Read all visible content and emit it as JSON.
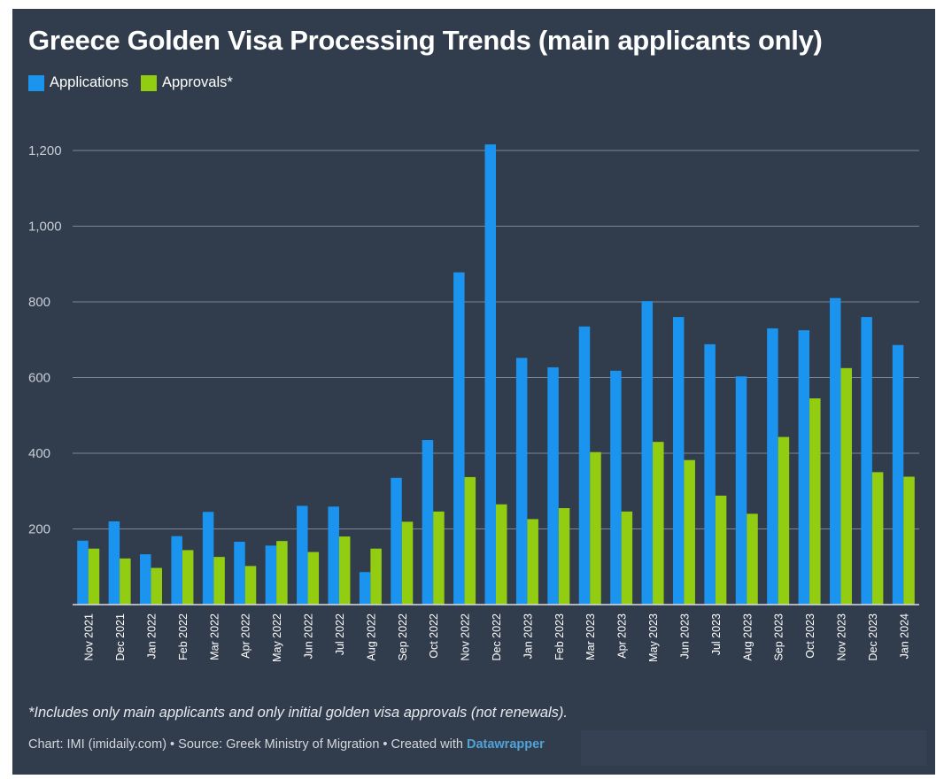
{
  "title": "Greece Golden Visa Processing Trends (main applicants only)",
  "legend": [
    {
      "label": "Applications",
      "color": "#1a94ef"
    },
    {
      "label": "Approvals*",
      "color": "#93cd12"
    }
  ],
  "note": "*Includes only main applicants and only initial golden visa approvals (not renewals).",
  "footer": {
    "prefix": "Chart: IMI (imidaily.com) • Source: Greek Ministry of Migration • Created with ",
    "link": "Datawrapper"
  },
  "chart_data": {
    "type": "bar",
    "title": "Greece Golden Visa Processing Trends (main applicants only)",
    "xlabel": "",
    "ylabel": "",
    "ylim": [
      0,
      1200
    ],
    "yticks": [
      200,
      400,
      600,
      800,
      1000,
      1200
    ],
    "ytick_labels": [
      "200",
      "400",
      "600",
      "800",
      "1,000",
      "1,200"
    ],
    "grid": true,
    "legend_position": "top-left",
    "categories": [
      "Nov 2021",
      "Dec 2021",
      "Jan 2022",
      "Feb 2022",
      "Mar 2022",
      "Apr 2022",
      "May 2022",
      "Jun 2022",
      "Jul 2022",
      "Aug 2022",
      "Sep 2022",
      "Oct 2022",
      "Nov 2022",
      "Dec 2022",
      "Jan 2023",
      "Feb 2023",
      "Mar 2023",
      "Apr 2023",
      "May 2023",
      "Jun 2023",
      "Jul 2023",
      "Aug 2023",
      "Sep 2023",
      "Oct 2023",
      "Nov 2023",
      "Dec 2023",
      "Jan 2024"
    ],
    "series": [
      {
        "name": "Applications",
        "color": "#1a94ef",
        "values": [
          169,
          220,
          133,
          181,
          245,
          166,
          156,
          261,
          259,
          86,
          335,
          435,
          878,
          1216,
          652,
          627,
          735,
          618,
          802,
          760,
          688,
          603,
          730,
          725,
          810,
          760,
          686
        ]
      },
      {
        "name": "Approvals*",
        "color": "#93cd12",
        "values": [
          148,
          122,
          97,
          144,
          126,
          102,
          168,
          139,
          180,
          148,
          219,
          246,
          337,
          265,
          226,
          255,
          403,
          246,
          430,
          382,
          288,
          240,
          443,
          545,
          625,
          350,
          338
        ]
      }
    ]
  }
}
